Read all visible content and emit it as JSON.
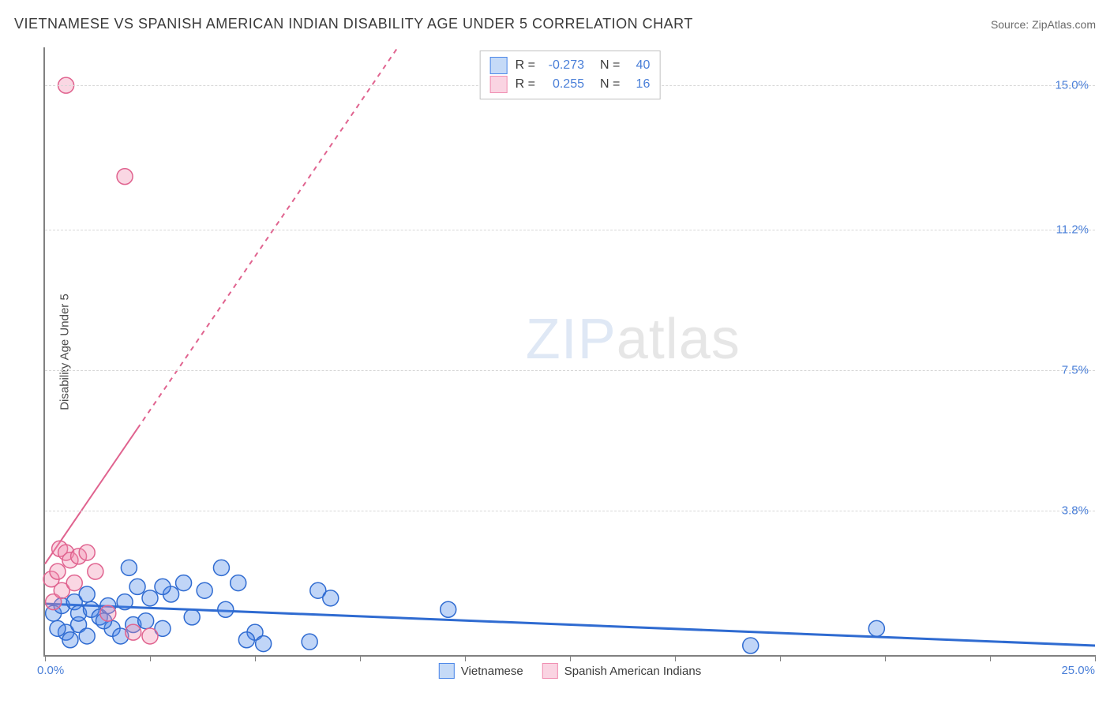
{
  "header": {
    "title": "VIETNAMESE VS SPANISH AMERICAN INDIAN DISABILITY AGE UNDER 5 CORRELATION CHART",
    "source": "Source: ZipAtlas.com"
  },
  "watermark": {
    "zip": "ZIP",
    "atlas": "atlas"
  },
  "chart": {
    "type": "scatter",
    "y_axis_label": "Disability Age Under 5",
    "background_color": "#ffffff",
    "grid_color": "#d8d8d8",
    "axis_color": "#808080",
    "xlim": [
      0,
      25
    ],
    "ylim": [
      0,
      16
    ],
    "x_ticks": [
      0,
      2.5,
      5,
      7.5,
      10,
      12.5,
      15,
      17.5,
      20,
      22.5,
      25
    ],
    "x_origin_label": "0.0%",
    "x_max_label": "25.0%",
    "y_gridlines": [
      {
        "value": 3.8,
        "label": "3.8%"
      },
      {
        "value": 7.5,
        "label": "7.5%"
      },
      {
        "value": 11.2,
        "label": "11.2%"
      },
      {
        "value": 15.0,
        "label": "15.0%"
      }
    ],
    "tick_label_color": "#4a7fd8",
    "point_radius": 10,
    "point_stroke_width": 1.5,
    "point_fill_opacity": 0.35,
    "series": [
      {
        "name": "Vietnamese",
        "color": "#4a86e8",
        "stroke": "#2f6bd1",
        "trend": {
          "x1": 0,
          "y1": 1.35,
          "x2": 25,
          "y2": 0.25,
          "dashed": false,
          "width": 3
        },
        "R": "-0.273",
        "N": "40",
        "points": [
          [
            0.2,
            1.1
          ],
          [
            0.4,
            1.3
          ],
          [
            0.5,
            0.6
          ],
          [
            0.6,
            0.4
          ],
          [
            0.7,
            1.4
          ],
          [
            0.8,
            0.8
          ],
          [
            0.8,
            1.1
          ],
          [
            1.0,
            1.6
          ],
          [
            1.0,
            0.5
          ],
          [
            1.1,
            1.2
          ],
          [
            1.3,
            1.0
          ],
          [
            1.5,
            1.3
          ],
          [
            1.6,
            0.7
          ],
          [
            1.8,
            0.5
          ],
          [
            1.9,
            1.4
          ],
          [
            2.0,
            2.3
          ],
          [
            2.1,
            0.8
          ],
          [
            2.2,
            1.8
          ],
          [
            2.4,
            0.9
          ],
          [
            2.5,
            1.5
          ],
          [
            3.0,
            1.6
          ],
          [
            3.3,
            1.9
          ],
          [
            3.5,
            1.0
          ],
          [
            3.8,
            1.7
          ],
          [
            4.2,
            2.3
          ],
          [
            4.3,
            1.2
          ],
          [
            4.6,
            1.9
          ],
          [
            5.0,
            0.6
          ],
          [
            5.2,
            0.3
          ],
          [
            6.5,
            1.7
          ],
          [
            6.8,
            1.5
          ],
          [
            9.6,
            1.2
          ],
          [
            6.3,
            0.35
          ],
          [
            4.8,
            0.4
          ],
          [
            16.8,
            0.25
          ],
          [
            19.8,
            0.7
          ],
          [
            2.8,
            0.7
          ],
          [
            2.8,
            1.8
          ],
          [
            1.4,
            0.9
          ],
          [
            0.3,
            0.7
          ]
        ]
      },
      {
        "name": "Spanish American Indians",
        "color": "#f08cb0",
        "stroke": "#e0638f",
        "trend": {
          "x1": 0,
          "y1": 2.4,
          "x2": 8.4,
          "y2": 16,
          "dashed_after_x": 2.2,
          "width": 2
        },
        "R": "0.255",
        "N": "16",
        "points": [
          [
            0.15,
            2.0
          ],
          [
            0.2,
            1.4
          ],
          [
            0.3,
            2.2
          ],
          [
            0.35,
            2.8
          ],
          [
            0.4,
            1.7
          ],
          [
            0.5,
            2.7
          ],
          [
            0.6,
            2.5
          ],
          [
            0.7,
            1.9
          ],
          [
            0.8,
            2.6
          ],
          [
            1.0,
            2.7
          ],
          [
            1.2,
            2.2
          ],
          [
            1.5,
            1.1
          ],
          [
            2.1,
            0.6
          ],
          [
            2.5,
            0.5
          ],
          [
            0.5,
            15.0
          ],
          [
            1.9,
            12.6
          ]
        ]
      }
    ],
    "bottom_legend": [
      {
        "label": "Vietnamese",
        "fill": "#c5daf7",
        "stroke": "#4a86e8"
      },
      {
        "label": "Spanish American Indians",
        "fill": "#fad4e2",
        "stroke": "#f08cb0"
      }
    ],
    "stats_box": {
      "rows": [
        {
          "swatch_fill": "#c5daf7",
          "swatch_stroke": "#4a86e8",
          "R_label": "R =",
          "R": "-0.273",
          "N_label": "N =",
          "N": "40"
        },
        {
          "swatch_fill": "#fad4e2",
          "swatch_stroke": "#f08cb0",
          "R_label": "R =",
          "R": "0.255",
          "N_label": "N =",
          "N": "16"
        }
      ]
    }
  }
}
